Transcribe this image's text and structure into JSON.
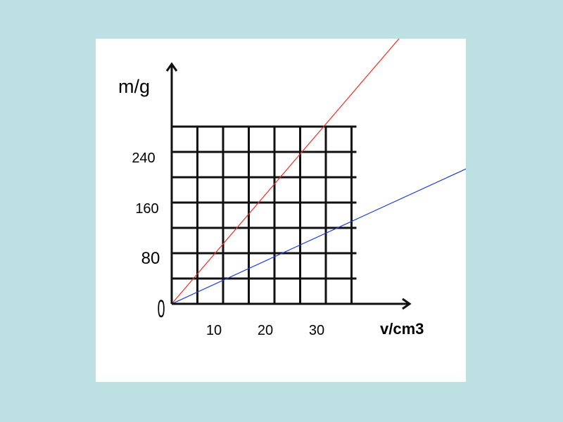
{
  "colors": {
    "background": "#bde0e3",
    "card": "#ffffff",
    "grid": "#111111",
    "axis": "#111111",
    "series_red": "#e8302b",
    "series_blue": "#1f3fd6"
  },
  "chart_data": {
    "type": "line",
    "title": "",
    "ylabel": "m/g",
    "xlabel": "v/cm3",
    "origin_label": "0",
    "x_ticks": [
      10,
      20,
      30
    ],
    "y_ticks": [
      80,
      160,
      240
    ],
    "xlim": [
      0,
      36
    ],
    "ylim": [
      0,
      280
    ],
    "grid": true,
    "x_gridlines": [
      5,
      10,
      15,
      20,
      25,
      30,
      35
    ],
    "y_gridlines": [
      40,
      80,
      120,
      160,
      200,
      240,
      280
    ],
    "series": [
      {
        "color": "#e8302b",
        "x": [
          0,
          50.7
        ],
        "y": [
          0,
          480
        ]
      },
      {
        "color": "#1f3fd6",
        "x": [
          0,
          61.8
        ],
        "y": [
          0,
          230
        ]
      }
    ]
  }
}
